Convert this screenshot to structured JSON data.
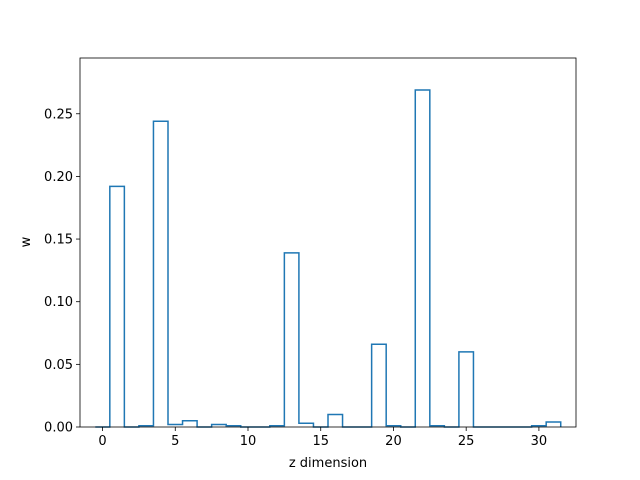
{
  "chart_data": {
    "type": "bar",
    "style": "step-outline",
    "title": "",
    "xlabel": "z dimension",
    "ylabel": "w",
    "xlim": [
      -1.55,
      32.55
    ],
    "ylim": [
      0,
      0.2945
    ],
    "xticks": [
      0,
      5,
      10,
      15,
      20,
      25,
      30
    ],
    "yticks": [
      0.0,
      0.05,
      0.1,
      0.15,
      0.2,
      0.25
    ],
    "ytick_labels": [
      "0.00",
      "0.05",
      "0.10",
      "0.15",
      "0.20",
      "0.25"
    ],
    "grid": false,
    "legend": "none",
    "color": "#1f77b4",
    "x": [
      0,
      1,
      2,
      3,
      4,
      5,
      6,
      7,
      8,
      9,
      10,
      11,
      12,
      13,
      14,
      15,
      16,
      17,
      18,
      19,
      20,
      21,
      22,
      23,
      24,
      25,
      26,
      27,
      28,
      29,
      30,
      31
    ],
    "values": [
      0.0,
      0.192,
      0.0,
      0.001,
      0.244,
      0.002,
      0.005,
      0.0,
      0.002,
      0.001,
      0.0,
      0.0,
      0.001,
      0.139,
      0.003,
      0.0,
      0.01,
      0.0,
      0.0,
      0.066,
      0.001,
      0.0,
      0.269,
      0.001,
      0.0,
      0.06,
      0.0,
      0.0,
      0.0,
      0.0,
      0.001,
      0.004
    ]
  }
}
